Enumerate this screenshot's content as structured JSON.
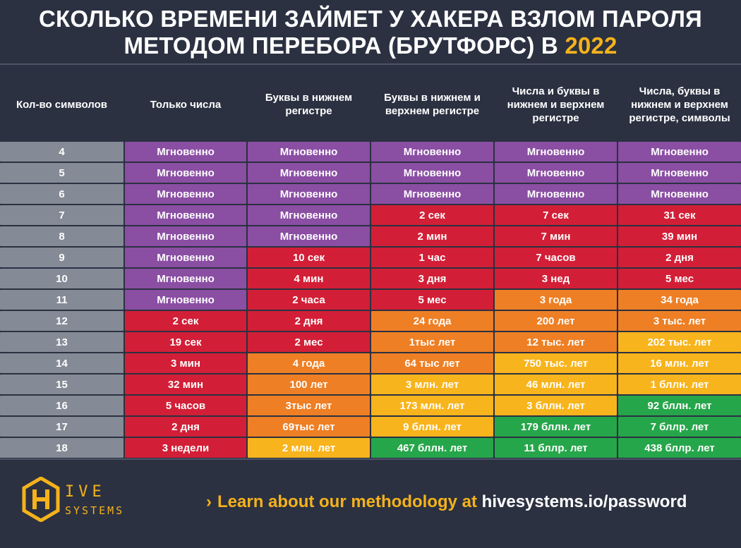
{
  "title": {
    "line1": "СКОЛЬКО ВРЕМЕНИ ЗАЙМЕТ У ХАКЕРА ВЗЛОМ ПАРОЛЯ",
    "line2_prefix": "МЕТОДОМ ПЕРЕБОРА (БРУТФОРС) В ",
    "year": "2022"
  },
  "table": {
    "headers": [
      "Кол-во символов",
      "Только числа",
      "Буквы в нижнем регистре",
      "Буквы в нижнем и верхнем регистре",
      "Числа и буквы в нижнем и верхнем регистре",
      "Числа, буквы в нижнем и верхнем регистре, символы"
    ],
    "rows": [
      {
        "n": "4",
        "cells": [
          "Мгновенно",
          "Мгновенно",
          "Мгновенно",
          "Мгновенно",
          "Мгновенно"
        ]
      },
      {
        "n": "5",
        "cells": [
          "Мгновенно",
          "Мгновенно",
          "Мгновенно",
          "Мгновенно",
          "Мгновенно"
        ]
      },
      {
        "n": "6",
        "cells": [
          "Мгновенно",
          "Мгновенно",
          "Мгновенно",
          "Мгновенно",
          "Мгновенно"
        ]
      },
      {
        "n": "7",
        "cells": [
          "Мгновенно",
          "Мгновенно",
          "2 сек",
          "7 сек",
          "31 сек"
        ]
      },
      {
        "n": "8",
        "cells": [
          "Мгновенно",
          "Мгновенно",
          "2 мин",
          "7 мин",
          "39 мин"
        ]
      },
      {
        "n": "9",
        "cells": [
          "Мгновенно",
          "10 сек",
          "1 час",
          "7 часов",
          "2 дня"
        ]
      },
      {
        "n": "10",
        "cells": [
          "Мгновенно",
          "4 мин",
          "3 дня",
          "3 нед",
          "5 мес"
        ]
      },
      {
        "n": "11",
        "cells": [
          "Мгновенно",
          "2 часа",
          "5 мес",
          "3 года",
          "34 года"
        ]
      },
      {
        "n": "12",
        "cells": [
          "2 сек",
          "2 дня",
          "24 года",
          "200 лет",
          "3 тыс. лет"
        ]
      },
      {
        "n": "13",
        "cells": [
          "19 сек",
          "2 мес",
          "1тыс лет",
          "12 тыс. лет",
          "202 тыс. лет"
        ]
      },
      {
        "n": "14",
        "cells": [
          "3 мин",
          "4 года",
          "64 тыс лет",
          "750 тыс. лет",
          "16 млн. лет"
        ]
      },
      {
        "n": "15",
        "cells": [
          "32 мин",
          "100 лет",
          "3 млн. лет",
          "46 млн. лет",
          "1 бллн. лет"
        ]
      },
      {
        "n": "16",
        "cells": [
          "5 часов",
          "3тыс лет",
          "173 млн. лет",
          "3 бллн. лет",
          "92 бллн. лет"
        ]
      },
      {
        "n": "17",
        "cells": [
          "2 дня",
          "69тыс лет",
          "9 бллн. лет",
          "179 бллн. лет",
          "7 бллр. лет"
        ]
      },
      {
        "n": "18",
        "cells": [
          "3 недели",
          "2 млн. лет",
          "467 бллн. лет",
          "11 бллр. лет",
          "438 бллр. лет"
        ]
      }
    ],
    "colors": {
      "purple": "#8a4ea3",
      "red": "#d21f37",
      "orange": "#ee7f24",
      "yellow": "#f8b41c",
      "green": "#26a64a",
      "count": "#858b96"
    },
    "cell_colors": [
      [
        "purple",
        "purple",
        "purple",
        "purple",
        "purple"
      ],
      [
        "purple",
        "purple",
        "purple",
        "purple",
        "purple"
      ],
      [
        "purple",
        "purple",
        "purple",
        "purple",
        "purple"
      ],
      [
        "purple",
        "purple",
        "red",
        "red",
        "red"
      ],
      [
        "purple",
        "purple",
        "red",
        "red",
        "red"
      ],
      [
        "purple",
        "red",
        "red",
        "red",
        "red"
      ],
      [
        "purple",
        "red",
        "red",
        "red",
        "red"
      ],
      [
        "purple",
        "red",
        "red",
        "orange",
        "orange"
      ],
      [
        "red",
        "red",
        "orange",
        "orange",
        "orange"
      ],
      [
        "red",
        "red",
        "orange",
        "orange",
        "yellow"
      ],
      [
        "red",
        "orange",
        "orange",
        "yellow",
        "yellow"
      ],
      [
        "red",
        "orange",
        "yellow",
        "yellow",
        "yellow"
      ],
      [
        "red",
        "orange",
        "yellow",
        "yellow",
        "green"
      ],
      [
        "red",
        "orange",
        "yellow",
        "green",
        "green"
      ],
      [
        "red",
        "yellow",
        "green",
        "green",
        "green"
      ]
    ]
  },
  "footer": {
    "logo_line1": "IVE",
    "logo_line2": "SYSTEMS",
    "logo_icon": "hive-hexagon-logo",
    "cta_arrow": "›",
    "cta_text": "Learn about our methodology at ",
    "cta_url": "hivesystems.io/password"
  }
}
